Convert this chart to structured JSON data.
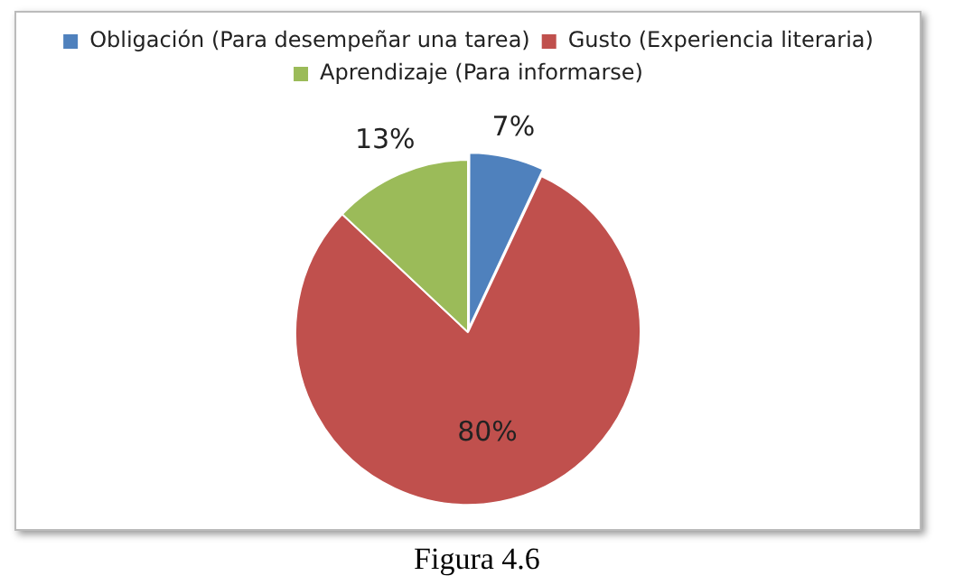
{
  "chart_data": {
    "type": "pie",
    "categories": [
      "Obligación (Para desempeñar una tarea)",
      "Gusto (Experiencia literaria)",
      "Aprendizaje (Para informarse)"
    ],
    "values": [
      7,
      80,
      13
    ],
    "colors": [
      "#4f81bd",
      "#c0504d",
      "#9bbb59"
    ],
    "value_labels": [
      "7%",
      "80%",
      "13%"
    ],
    "legend": "top",
    "annotations": [
      "Figura 4.6"
    ]
  }
}
